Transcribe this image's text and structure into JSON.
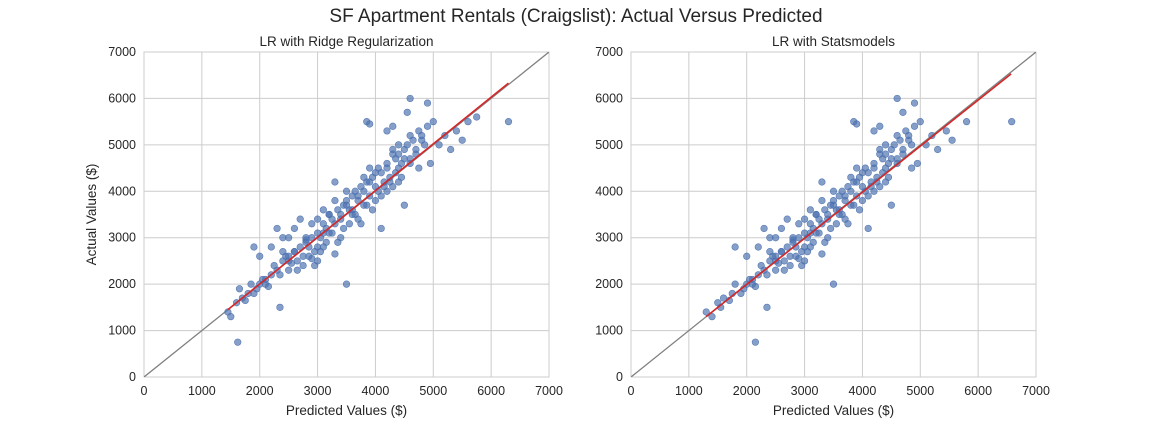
{
  "figure_title": "SF Apartment Rentals (Craigslist): Actual Versus Predicted",
  "colors": {
    "point": "#4c72b0",
    "fit_line": "#d62728",
    "identity_line": "#808080",
    "grid": "#cccccc",
    "spine": "#cccccc"
  },
  "chart_data": [
    {
      "type": "scatter",
      "title": "LR with Ridge Regularization",
      "xlabel": "Predicted Values ($)",
      "ylabel": "Actual Values ($)",
      "xlim": [
        0,
        7000
      ],
      "ylim": [
        0,
        7000
      ],
      "xticks": [
        0,
        1000,
        2000,
        3000,
        4000,
        5000,
        6000,
        7000
      ],
      "yticks": [
        0,
        1000,
        2000,
        3000,
        4000,
        5000,
        6000,
        7000
      ],
      "grid": true,
      "identity_line": {
        "x": [
          0,
          7000
        ],
        "y": [
          0,
          7000
        ]
      },
      "fit_line": {
        "x": [
          1450,
          6300
        ],
        "y": [
          1450,
          6330
        ]
      },
      "series": [
        {
          "x": [
            1450,
            1500,
            1600,
            1650,
            1700,
            1750,
            1800,
            1850,
            1900,
            1950,
            2000,
            2050,
            2100,
            2150,
            2200,
            2250,
            2300,
            2350,
            2400,
            2450,
            2500,
            2550,
            2600,
            2650,
            2700,
            2750,
            2800,
            2850,
            2900,
            2950,
            3000,
            3050,
            3100,
            3150,
            3200,
            3250,
            3300,
            3350,
            3400,
            3450,
            3500,
            3550,
            3600,
            3650,
            3700,
            3750,
            3800,
            3850,
            3900,
            3950,
            4000,
            4050,
            4100,
            4150,
            4200,
            4250,
            4300,
            4350,
            4400,
            4450,
            4500,
            4550,
            4600,
            4650,
            4700,
            4750,
            4800,
            4850,
            4900,
            4950,
            5000,
            5100,
            5200,
            5300,
            5400,
            5500,
            5600,
            5750,
            6300,
            1620,
            1900,
            2000,
            2200,
            2300,
            2400,
            2500,
            2600,
            2700,
            2800,
            2900,
            3000,
            3100,
            3200,
            3300,
            3400,
            3500,
            3600,
            3700,
            3800,
            3900,
            4000,
            4100,
            4200,
            4300,
            4400,
            4500,
            4600,
            4700,
            4800,
            2650,
            2750,
            2850,
            2950,
            3050,
            3150,
            3250,
            3350,
            3450,
            3550,
            3650,
            3750,
            3850,
            3950,
            4050,
            4150,
            4250,
            4350,
            4450,
            2100,
            2350,
            2500,
            3000,
            3100,
            3300,
            3500,
            3900,
            4100,
            4300,
            4500,
            4900,
            3850,
            3900,
            4550,
            4750,
            4600,
            4200,
            4300,
            4400,
            2500,
            2600,
            2800,
            3000,
            3200,
            3400,
            3600,
            3800,
            4000,
            4200,
            4400,
            4600,
            2400,
            2900,
            3100,
            3300,
            3500,
            3700
          ],
          "y": [
            1400,
            1300,
            1600,
            1900,
            1700,
            1650,
            1800,
            2000,
            1800,
            1900,
            2000,
            2100,
            2000,
            1950,
            2200,
            2400,
            2300,
            2200,
            2500,
            2600,
            2300,
            2450,
            2700,
            2500,
            2800,
            2600,
            2900,
            2800,
            3000,
            2700,
            3100,
            3000,
            3300,
            3200,
            3500,
            3400,
            3300,
            3600,
            3500,
            3700,
            3800,
            3600,
            3900,
            4000,
            3800,
            4100,
            4000,
            4200,
            3900,
            4300,
            4100,
            4500,
            4400,
            4200,
            4600,
            4300,
            4800,
            4700,
            4500,
            4600,
            4900,
            5000,
            4700,
            5100,
            4800,
            5300,
            5200,
            5000,
            5400,
            4600,
            5500,
            5000,
            5200,
            4900,
            5300,
            5100,
            5500,
            5600,
            5500,
            750,
            2800,
            2600,
            2800,
            3200,
            3000,
            2500,
            2700,
            3400,
            3000,
            3300,
            2800,
            3600,
            3100,
            3800,
            3400,
            4000,
            3500,
            3900,
            3700,
            4200,
            4400,
            3900,
            4500,
            4100,
            5000,
            4700,
            5200,
            4900,
            5100,
            2300,
            2400,
            2600,
            2400,
            2700,
            2900,
            3100,
            2900,
            3200,
            3300,
            3500,
            3300,
            3700,
            3600,
            4000,
            4100,
            4200,
            4400,
            4300,
            2100,
            1500,
            2600,
            2500,
            3100,
            4200,
            2000,
            4500,
            3200,
            4900,
            3700,
            5900,
            5500,
            5450,
            5700,
            4500,
            6000,
            5300,
            5400,
            4800,
            3000,
            3200,
            2950,
            3400,
            3500,
            3000,
            3600,
            4300,
            3800,
            4000,
            4200,
            4600,
            2700,
            2550,
            2800,
            2650,
            3700,
            3400
          ]
        }
      ]
    },
    {
      "type": "scatter",
      "title": "LR with Statsmodels",
      "xlabel": "Predicted Values ($)",
      "ylabel": "",
      "xlim": [
        0,
        7000
      ],
      "ylim": [
        0,
        7000
      ],
      "xticks": [
        0,
        1000,
        2000,
        3000,
        4000,
        5000,
        6000,
        7000
      ],
      "yticks": [
        0,
        1000,
        2000,
        3000,
        4000,
        5000,
        6000,
        7000
      ],
      "grid": true,
      "identity_line": {
        "x": [
          0,
          7000
        ],
        "y": [
          0,
          7000
        ]
      },
      "fit_line": {
        "x": [
          1300,
          6570
        ],
        "y": [
          1300,
          6530
        ]
      },
      "series": [
        {
          "x": [
            1300,
            1400,
            1500,
            1550,
            1600,
            1700,
            1750,
            1800,
            1900,
            1950,
            2000,
            2050,
            2100,
            2150,
            2200,
            2250,
            2300,
            2350,
            2400,
            2450,
            2500,
            2550,
            2600,
            2650,
            2700,
            2750,
            2800,
            2850,
            2900,
            2950,
            3000,
            3050,
            3100,
            3150,
            3200,
            3250,
            3300,
            3350,
            3400,
            3450,
            3500,
            3550,
            3600,
            3650,
            3700,
            3750,
            3800,
            3850,
            3900,
            3950,
            4000,
            4050,
            4100,
            4150,
            4200,
            4250,
            4300,
            4350,
            4400,
            4450,
            4500,
            4550,
            4600,
            4650,
            4700,
            4750,
            4800,
            4850,
            4900,
            4950,
            5000,
            5100,
            5200,
            5300,
            5450,
            5550,
            5800,
            6580,
            2150,
            1800,
            2000,
            2200,
            2300,
            2400,
            2500,
            2600,
            2700,
            2800,
            2900,
            3000,
            3100,
            3200,
            3300,
            3400,
            3500,
            3600,
            3700,
            3800,
            3900,
            4000,
            4100,
            4200,
            4300,
            4400,
            4500,
            4600,
            4700,
            4800,
            2650,
            2750,
            2850,
            2950,
            3050,
            3150,
            3250,
            3350,
            3450,
            3550,
            3650,
            3750,
            3850,
            3950,
            4050,
            4150,
            4250,
            4350,
            4450,
            2100,
            2350,
            2500,
            3000,
            3100,
            3300,
            3500,
            3900,
            4100,
            4300,
            4500,
            4900,
            3850,
            3900,
            4700,
            4850,
            4600,
            4200,
            4300,
            4400,
            2500,
            2600,
            2800,
            3000,
            3200,
            3400,
            3600,
            3800,
            4000,
            4200,
            4400,
            4600,
            2400,
            2900,
            3100,
            3300,
            3500,
            3700
          ],
          "y": [
            1400,
            1300,
            1600,
            1500,
            1700,
            1650,
            1800,
            2000,
            1800,
            1900,
            2000,
            2100,
            2000,
            1950,
            2200,
            2400,
            2300,
            2200,
            2500,
            2600,
            2300,
            2450,
            2700,
            2500,
            2800,
            2600,
            2900,
            2800,
            3000,
            2700,
            3100,
            3000,
            3300,
            3200,
            3500,
            3400,
            3300,
            3600,
            3500,
            3700,
            3800,
            3600,
            3900,
            4000,
            3800,
            4100,
            4000,
            4200,
            3900,
            4300,
            4100,
            4500,
            4400,
            4200,
            4600,
            4300,
            4800,
            4700,
            4500,
            4600,
            4900,
            5000,
            4700,
            5100,
            4800,
            5300,
            5200,
            5000,
            5400,
            4600,
            5500,
            5000,
            5200,
            4900,
            5300,
            5100,
            5500,
            5500,
            750,
            2800,
            2600,
            2800,
            3200,
            3000,
            2500,
            2700,
            3400,
            3000,
            3300,
            2800,
            3600,
            3100,
            3800,
            3400,
            4000,
            3500,
            3900,
            3700,
            4200,
            4400,
            3900,
            4500,
            4100,
            5000,
            4700,
            5200,
            4900,
            5100,
            2300,
            2400,
            2600,
            2400,
            2700,
            2900,
            3100,
            2900,
            3200,
            3300,
            3500,
            3300,
            3700,
            3600,
            4000,
            4100,
            4200,
            4400,
            4300,
            2100,
            1500,
            2600,
            2500,
            3100,
            4200,
            2000,
            4500,
            3200,
            4900,
            3700,
            5900,
            5500,
            5450,
            5700,
            4500,
            6000,
            5300,
            5400,
            4800,
            3000,
            3200,
            2950,
            3400,
            3500,
            3000,
            3600,
            4300,
            3800,
            4000,
            4200,
            4600,
            2700,
            2550,
            2800,
            2650,
            3700,
            3400
          ]
        }
      ]
    }
  ]
}
